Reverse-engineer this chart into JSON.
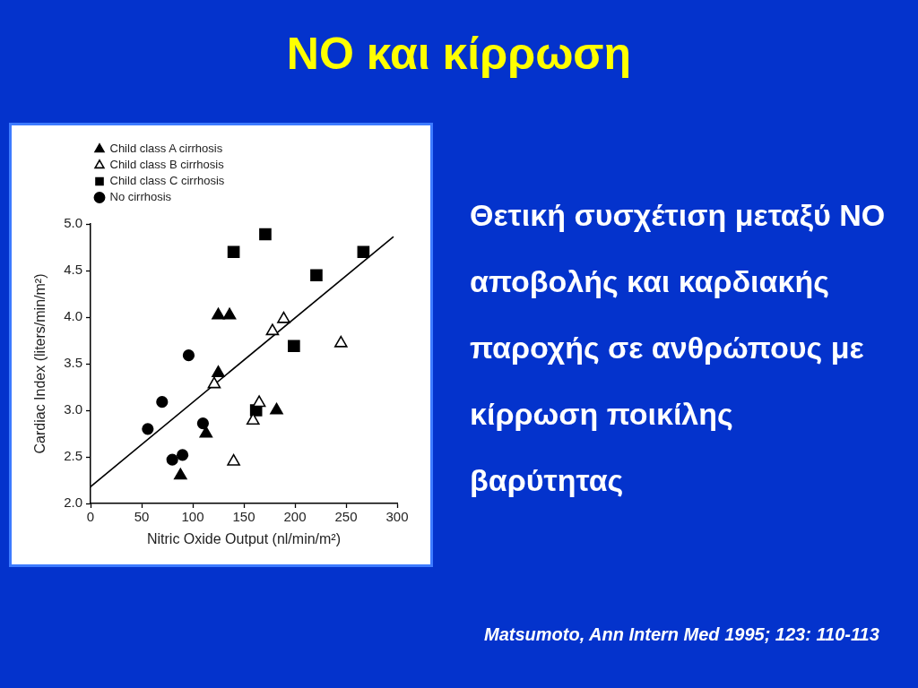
{
  "chart_data": {
    "type": "scatter",
    "title": "NO και κίρρωση",
    "xlabel": "Nitric Oxide Output (nl/min/m²)",
    "ylabel": "Cardiac Index (liters/min/m²)",
    "annotations": [
      "Θετική συσχέτιση μεταξύ NO αποβολής και καρδιακής παροχής σε ανθρώπους με κίρρωση ποικίλης βαρύτητας",
      "Matsumoto, Ann Intern Med 1995; 123: 110-113"
    ],
    "series": [
      {
        "name": "Child class A cirrhosis",
        "color": "#000000",
        "marker": "triangle",
        "x": [
          125,
          136,
          125,
          113,
          88,
          182
        ],
        "values": [
          4.02,
          4.02,
          3.4,
          2.75,
          2.3,
          3.0
        ]
      },
      {
        "name": "Child class B cirrhosis",
        "color": "#ffffff",
        "marker": "triangle",
        "x": [
          121,
          140,
          165,
          159,
          178,
          189,
          245
        ],
        "values": [
          3.28,
          2.45,
          3.08,
          2.89,
          3.85,
          3.98,
          3.72
        ]
      },
      {
        "name": "Child class C cirrhosis",
        "color": "#000000",
        "marker": "square",
        "x": [
          140,
          171,
          267,
          221,
          199,
          162
        ],
        "values": [
          4.7,
          4.89,
          4.7,
          4.45,
          3.69,
          3.0
        ]
      },
      {
        "name": "No cirrhosis",
        "color": "#000000",
        "marker": "circle",
        "x": [
          96,
          70,
          56,
          110,
          80,
          90
        ],
        "values": [
          3.59,
          3.09,
          2.8,
          2.86,
          2.47,
          2.52
        ]
      },
      {
        "type": "line",
        "color": "#000000",
        "marker": "none",
        "x": [
          0,
          296
        ],
        "values": [
          2.18,
          4.86
        ]
      }
    ],
    "xlim": [
      0,
      300
    ],
    "ylim": [
      2,
      5
    ],
    "xticks": [
      0,
      50,
      100,
      150,
      200,
      250,
      300
    ],
    "yticks": [
      {
        "value": 2,
        "label": "2.0"
      },
      2.5,
      {
        "value": 3,
        "label": "3.0"
      },
      3.5,
      {
        "value": 4,
        "label": "4.0"
      },
      4.5,
      {
        "value": 5,
        "label": "5.0"
      }
    ],
    "legend": "top left",
    "line_style": "solid"
  }
}
